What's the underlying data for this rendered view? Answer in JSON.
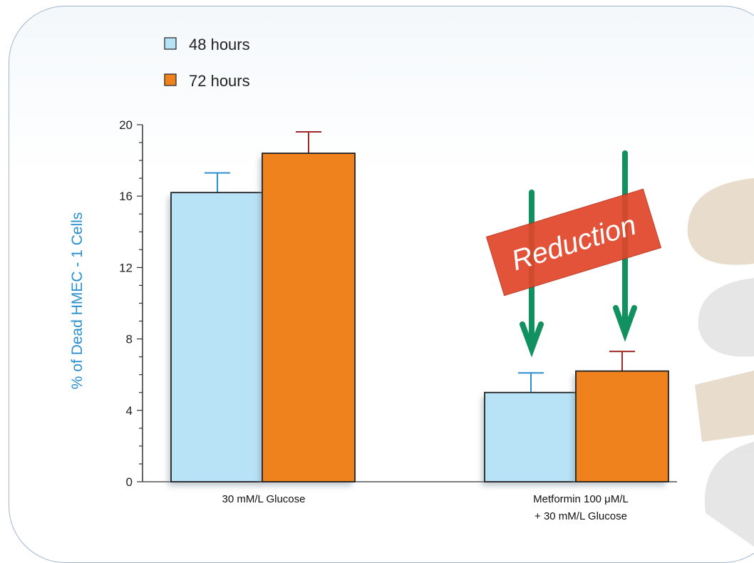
{
  "chart_data": {
    "type": "bar",
    "categories": [
      "30 mM/L Glucose",
      "Metformin 100 μM/L\n+ 30 mM/L Glucose"
    ],
    "category_lines": [
      [
        "30 mM/L Glucose"
      ],
      [
        "Metformin 100 μM/L",
        "+ 30 mM/L Glucose"
      ]
    ],
    "series": [
      {
        "name": "48 hours",
        "values": [
          16.2,
          5.0
        ],
        "errors": [
          1.1,
          1.1
        ],
        "color": "#b8e2f6",
        "error_color": "#2a8fcf"
      },
      {
        "name": "72 hours",
        "values": [
          18.4,
          6.2
        ],
        "errors": [
          1.2,
          1.1
        ],
        "color": "#f0821e",
        "error_color": "#a02828"
      }
    ],
    "ylabel": "% of Dead HMEC - 1 Cells",
    "ylim": [
      0,
      20
    ],
    "yticks": [
      0,
      4,
      8,
      12,
      16,
      20
    ],
    "legend_position": "top-left",
    "annotation": {
      "text": "Reduction",
      "color": "#e0452a",
      "arrow_color": "#119060"
    }
  }
}
